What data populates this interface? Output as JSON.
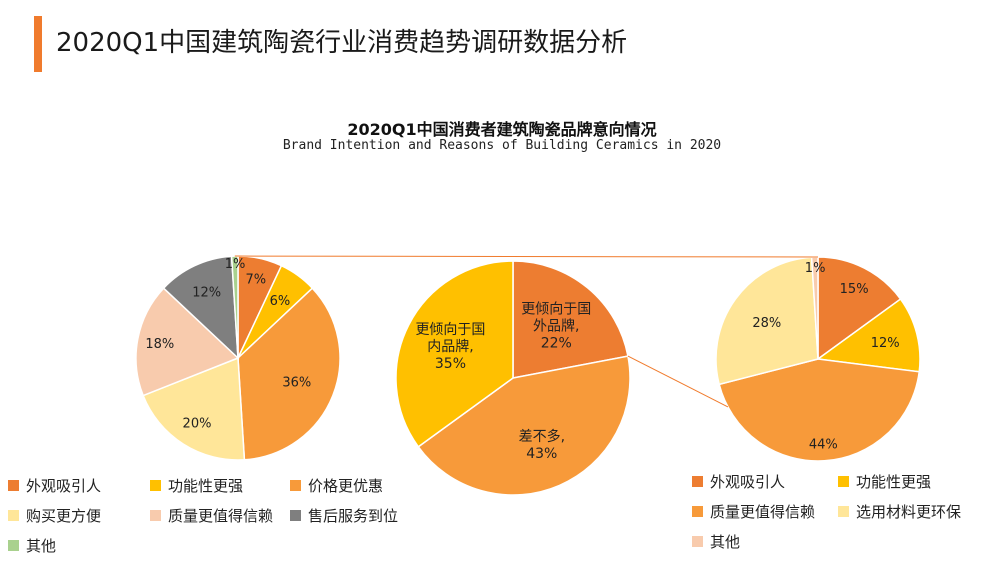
{
  "header": {
    "title": "2020Q1中国建筑陶瓷行业消费趋势调研数据分析",
    "accent_color": "#F07B2D"
  },
  "chart_title": "2020Q1中国消费者建筑陶瓷品牌意向情况",
  "chart_subtitle": "Brand Intention and Reasons of Building Ceramics in 2020",
  "chart_data": [
    {
      "type": "pie",
      "name": "left",
      "categories": [
        "外观吸引人",
        "功能性更强",
        "价格更优惠",
        "购买更方便",
        "质量更值得信赖",
        "售后服务到位",
        "其他"
      ],
      "values": [
        7,
        6,
        36,
        20,
        18,
        12,
        1
      ],
      "labels": [
        "7%",
        "6%",
        "36%",
        "20%",
        "18%",
        "12%",
        "1%"
      ],
      "colors": [
        "#ED7D31",
        "#FFC000",
        "#F79A3A",
        "#FFE699",
        "#F8CBAD",
        "#7F7F7F",
        "#A9D18E"
      ],
      "legend_position": "bottom"
    },
    {
      "type": "pie",
      "name": "middle",
      "categories": [
        "更倾向于国外品牌",
        "差不多",
        "更倾向于国内品牌"
      ],
      "values": [
        22,
        43,
        35
      ],
      "label_lines": [
        [
          "更倾向于国",
          "外品牌,",
          "22%"
        ],
        [
          "差不多,",
          "43%"
        ],
        [
          "更倾向于国",
          "内品牌,",
          "35%"
        ]
      ],
      "colors": [
        "#ED7D31",
        "#F79A3A",
        "#FFC000"
      ]
    },
    {
      "type": "pie",
      "name": "right",
      "categories": [
        "外观吸引人",
        "功能性更强",
        "质量更值得信赖",
        "选用材料更环保",
        "其他"
      ],
      "values": [
        15,
        12,
        44,
        28,
        1
      ],
      "labels": [
        "15%",
        "12%",
        "44%",
        "28%",
        "1%"
      ],
      "colors": [
        "#ED7D31",
        "#FFC000",
        "#F79A3A",
        "#FFE699",
        "#F8CBAD"
      ],
      "legend_position": "bottom"
    }
  ],
  "connector_color": "#F07B2D"
}
